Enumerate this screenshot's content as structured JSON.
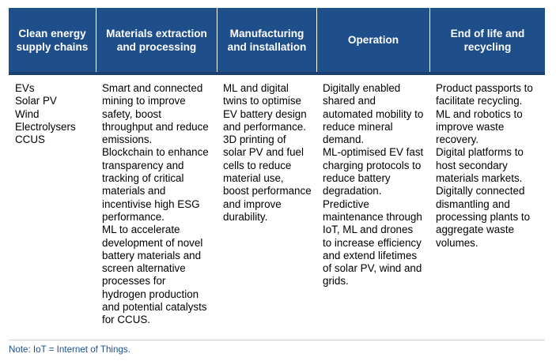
{
  "table": {
    "headers": [
      [
        "Clean energy",
        "supply chains"
      ],
      [
        "Materials extraction",
        "and processing"
      ],
      [
        "Manufacturing",
        "and installation"
      ],
      [
        "Operation"
      ],
      [
        "End of life and",
        "recycling"
      ]
    ],
    "columns": [
      [
        "EVs",
        "Solar PV",
        "Wind",
        "Electrolysers",
        "CCUS"
      ],
      [
        "Smart and connected",
        "mining to improve",
        "safety, boost",
        "throughput and reduce",
        "emissions.",
        "Blockchain to enhance",
        "transparency and",
        "tracking of critical",
        "materials and",
        "incentivise high ESG",
        "performance.",
        "ML to accelerate",
        "development of novel",
        "battery materials and",
        "screen alternative",
        "processes for",
        "hydrogen production",
        "and potential catalysts",
        "for CCUS."
      ],
      [
        "ML and digital",
        "twins to optimise",
        "EV battery design",
        "and performance.",
        "3D printing of",
        "solar PV and fuel",
        "cells to reduce",
        "material use,",
        "boost performance",
        "and improve",
        "durability."
      ],
      [
        "Digitally enabled",
        "shared and",
        "automated mobility to",
        "reduce mineral",
        "demand.",
        "ML-optimised EV fast",
        "charging protocols to",
        "reduce battery",
        "degradation.",
        "Predictive",
        "maintenance through",
        "IoT, ML and drones",
        "to increase efficiency",
        "and extend lifetimes",
        "of solar PV, wind and",
        "grids."
      ],
      [
        "Product passports to",
        "facilitate recycling.",
        "ML and robotics to",
        "improve waste",
        "recovery.",
        "Digital platforms to",
        "host secondary",
        "materials markets.",
        "Digitally connected",
        "dismantling and",
        "processing plants to",
        "aggregate waste",
        "volumes."
      ]
    ]
  },
  "note": "Note: IoT = Internet of Things.",
  "colors": {
    "header_bg": "#1f4f8b",
    "header_text": "#ffffff",
    "note_text": "#1f4f8b"
  }
}
